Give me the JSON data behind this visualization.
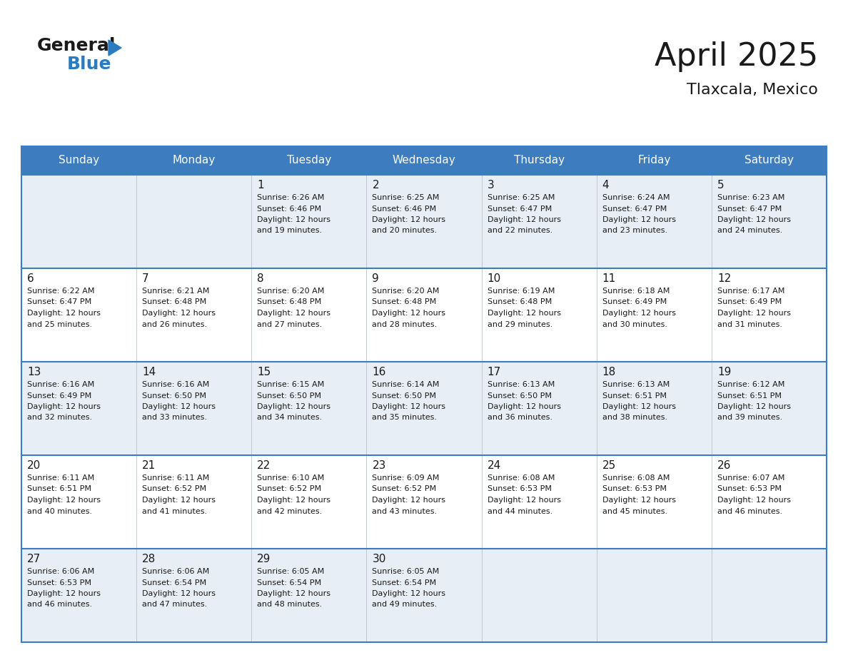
{
  "title": "April 2025",
  "subtitle": "Tlaxcala, Mexico",
  "header_bg": "#3d7dbf",
  "header_text": "#ffffff",
  "row_bg_alt": "#e8eef5",
  "row_bg_white": "#ffffff",
  "cell_border_color": "#3d7dbf",
  "text_color": "#1a1a1a",
  "day_names": [
    "Sunday",
    "Monday",
    "Tuesday",
    "Wednesday",
    "Thursday",
    "Friday",
    "Saturday"
  ],
  "days": [
    {
      "day": 1,
      "col": 2,
      "row": 0,
      "sunrise": "6:26 AM",
      "sunset": "6:46 PM",
      "daylight_hours": 12,
      "daylight_minutes": 19
    },
    {
      "day": 2,
      "col": 3,
      "row": 0,
      "sunrise": "6:25 AM",
      "sunset": "6:46 PM",
      "daylight_hours": 12,
      "daylight_minutes": 20
    },
    {
      "day": 3,
      "col": 4,
      "row": 0,
      "sunrise": "6:25 AM",
      "sunset": "6:47 PM",
      "daylight_hours": 12,
      "daylight_minutes": 22
    },
    {
      "day": 4,
      "col": 5,
      "row": 0,
      "sunrise": "6:24 AM",
      "sunset": "6:47 PM",
      "daylight_hours": 12,
      "daylight_minutes": 23
    },
    {
      "day": 5,
      "col": 6,
      "row": 0,
      "sunrise": "6:23 AM",
      "sunset": "6:47 PM",
      "daylight_hours": 12,
      "daylight_minutes": 24
    },
    {
      "day": 6,
      "col": 0,
      "row": 1,
      "sunrise": "6:22 AM",
      "sunset": "6:47 PM",
      "daylight_hours": 12,
      "daylight_minutes": 25
    },
    {
      "day": 7,
      "col": 1,
      "row": 1,
      "sunrise": "6:21 AM",
      "sunset": "6:48 PM",
      "daylight_hours": 12,
      "daylight_minutes": 26
    },
    {
      "day": 8,
      "col": 2,
      "row": 1,
      "sunrise": "6:20 AM",
      "sunset": "6:48 PM",
      "daylight_hours": 12,
      "daylight_minutes": 27
    },
    {
      "day": 9,
      "col": 3,
      "row": 1,
      "sunrise": "6:20 AM",
      "sunset": "6:48 PM",
      "daylight_hours": 12,
      "daylight_minutes": 28
    },
    {
      "day": 10,
      "col": 4,
      "row": 1,
      "sunrise": "6:19 AM",
      "sunset": "6:48 PM",
      "daylight_hours": 12,
      "daylight_minutes": 29
    },
    {
      "day": 11,
      "col": 5,
      "row": 1,
      "sunrise": "6:18 AM",
      "sunset": "6:49 PM",
      "daylight_hours": 12,
      "daylight_minutes": 30
    },
    {
      "day": 12,
      "col": 6,
      "row": 1,
      "sunrise": "6:17 AM",
      "sunset": "6:49 PM",
      "daylight_hours": 12,
      "daylight_minutes": 31
    },
    {
      "day": 13,
      "col": 0,
      "row": 2,
      "sunrise": "6:16 AM",
      "sunset": "6:49 PM",
      "daylight_hours": 12,
      "daylight_minutes": 32
    },
    {
      "day": 14,
      "col": 1,
      "row": 2,
      "sunrise": "6:16 AM",
      "sunset": "6:50 PM",
      "daylight_hours": 12,
      "daylight_minutes": 33
    },
    {
      "day": 15,
      "col": 2,
      "row": 2,
      "sunrise": "6:15 AM",
      "sunset": "6:50 PM",
      "daylight_hours": 12,
      "daylight_minutes": 34
    },
    {
      "day": 16,
      "col": 3,
      "row": 2,
      "sunrise": "6:14 AM",
      "sunset": "6:50 PM",
      "daylight_hours": 12,
      "daylight_minutes": 35
    },
    {
      "day": 17,
      "col": 4,
      "row": 2,
      "sunrise": "6:13 AM",
      "sunset": "6:50 PM",
      "daylight_hours": 12,
      "daylight_minutes": 36
    },
    {
      "day": 18,
      "col": 5,
      "row": 2,
      "sunrise": "6:13 AM",
      "sunset": "6:51 PM",
      "daylight_hours": 12,
      "daylight_minutes": 38
    },
    {
      "day": 19,
      "col": 6,
      "row": 2,
      "sunrise": "6:12 AM",
      "sunset": "6:51 PM",
      "daylight_hours": 12,
      "daylight_minutes": 39
    },
    {
      "day": 20,
      "col": 0,
      "row": 3,
      "sunrise": "6:11 AM",
      "sunset": "6:51 PM",
      "daylight_hours": 12,
      "daylight_minutes": 40
    },
    {
      "day": 21,
      "col": 1,
      "row": 3,
      "sunrise": "6:11 AM",
      "sunset": "6:52 PM",
      "daylight_hours": 12,
      "daylight_minutes": 41
    },
    {
      "day": 22,
      "col": 2,
      "row": 3,
      "sunrise": "6:10 AM",
      "sunset": "6:52 PM",
      "daylight_hours": 12,
      "daylight_minutes": 42
    },
    {
      "day": 23,
      "col": 3,
      "row": 3,
      "sunrise": "6:09 AM",
      "sunset": "6:52 PM",
      "daylight_hours": 12,
      "daylight_minutes": 43
    },
    {
      "day": 24,
      "col": 4,
      "row": 3,
      "sunrise": "6:08 AM",
      "sunset": "6:53 PM",
      "daylight_hours": 12,
      "daylight_minutes": 44
    },
    {
      "day": 25,
      "col": 5,
      "row": 3,
      "sunrise": "6:08 AM",
      "sunset": "6:53 PM",
      "daylight_hours": 12,
      "daylight_minutes": 45
    },
    {
      "day": 26,
      "col": 6,
      "row": 3,
      "sunrise": "6:07 AM",
      "sunset": "6:53 PM",
      "daylight_hours": 12,
      "daylight_minutes": 46
    },
    {
      "day": 27,
      "col": 0,
      "row": 4,
      "sunrise": "6:06 AM",
      "sunset": "6:53 PM",
      "daylight_hours": 12,
      "daylight_minutes": 46
    },
    {
      "day": 28,
      "col": 1,
      "row": 4,
      "sunrise": "6:06 AM",
      "sunset": "6:54 PM",
      "daylight_hours": 12,
      "daylight_minutes": 47
    },
    {
      "day": 29,
      "col": 2,
      "row": 4,
      "sunrise": "6:05 AM",
      "sunset": "6:54 PM",
      "daylight_hours": 12,
      "daylight_minutes": 48
    },
    {
      "day": 30,
      "col": 3,
      "row": 4,
      "sunrise": "6:05 AM",
      "sunset": "6:54 PM",
      "daylight_hours": 12,
      "daylight_minutes": 49
    }
  ],
  "num_rows": 5,
  "num_cols": 7,
  "title_fontsize": 32,
  "subtitle_fontsize": 16,
  "dayname_fontsize": 11,
  "day_num_fontsize": 11,
  "cell_text_fontsize": 8
}
